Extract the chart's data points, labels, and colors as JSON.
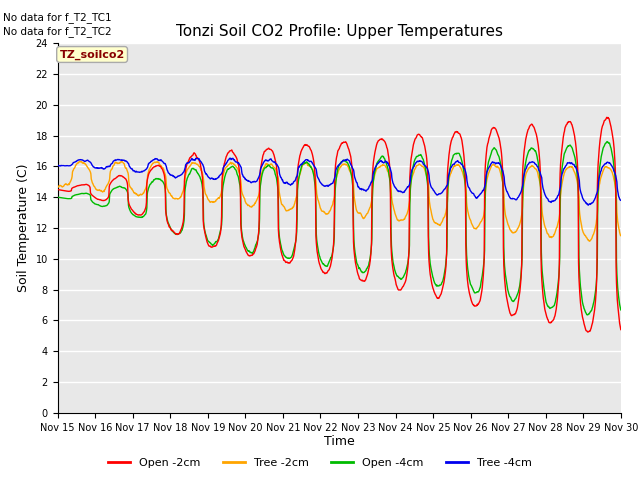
{
  "title": "Tonzi Soil CO2 Profile: Upper Temperatures",
  "ylabel": "Soil Temperature (C)",
  "xlabel": "Time",
  "no_data_notes": [
    "No data for f_T2_TC1",
    "No data for f_T2_TC2"
  ],
  "dataset_label": "TZ_soilco2",
  "ylim": [
    0,
    24
  ],
  "yticks": [
    0,
    2,
    4,
    6,
    8,
    10,
    12,
    14,
    16,
    18,
    20,
    22,
    24
  ],
  "xlim": [
    15,
    30
  ],
  "xtick_labels": [
    "Nov 15",
    "Nov 16",
    "Nov 17",
    "Nov 18",
    "Nov 19",
    "Nov 20",
    "Nov 21",
    "Nov 22",
    "Nov 23",
    "Nov 24",
    "Nov 25",
    "Nov 26",
    "Nov 27",
    "Nov 28",
    "Nov 29",
    "Nov 30"
  ],
  "colors": {
    "open_2cm": "#FF0000",
    "tree_2cm": "#FFA500",
    "open_4cm": "#00BB00",
    "tree_4cm": "#0000EE"
  },
  "legend_labels": [
    "Open -2cm",
    "Tree -2cm",
    "Open -4cm",
    "Tree -4cm"
  ],
  "bg_color": "#E8E8E8",
  "fig_bg": "#FFFFFF",
  "grid_color": "#FFFFFF",
  "title_fontsize": 11,
  "axis_fontsize": 9,
  "tick_fontsize": 7
}
